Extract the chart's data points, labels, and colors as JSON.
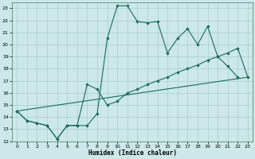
{
  "xlabel": "Humidex (Indice chaleur)",
  "xlim": [
    -0.5,
    23.5
  ],
  "ylim": [
    12,
    23.5
  ],
  "yticks": [
    12,
    13,
    14,
    15,
    16,
    17,
    18,
    19,
    20,
    21,
    22,
    23
  ],
  "xticks": [
    0,
    1,
    2,
    3,
    4,
    5,
    6,
    7,
    8,
    9,
    10,
    11,
    12,
    13,
    14,
    15,
    16,
    17,
    18,
    19,
    20,
    21,
    22,
    23
  ],
  "bg_color": "#cce8e8",
  "grid_color": "#aacccc",
  "line_color": "#1a6b5a",
  "line1_x": [
    0,
    1,
    2,
    3,
    4,
    5,
    6,
    7,
    8,
    9,
    10,
    11,
    12,
    13,
    14,
    15,
    16,
    17,
    18,
    19,
    20,
    21,
    22
  ],
  "line1_y": [
    14.5,
    13.7,
    13.5,
    13.3,
    12.2,
    13.3,
    13.3,
    13.3,
    14.3,
    20.5,
    23.2,
    23.2,
    21.9,
    21.8,
    21.9,
    19.3,
    20.5,
    21.3,
    20.0,
    21.5,
    19.0,
    18.2,
    17.3
  ],
  "line2_x": [
    0,
    1,
    2,
    3,
    4,
    5,
    6,
    7,
    8,
    9,
    10,
    11,
    12,
    13,
    14,
    15,
    16,
    17,
    18,
    19,
    20,
    21,
    22,
    23
  ],
  "line2_y": [
    14.5,
    13.7,
    13.5,
    13.3,
    12.2,
    13.3,
    13.3,
    16.7,
    16.3,
    15.0,
    15.3,
    16.0,
    16.3,
    16.7,
    17.0,
    17.3,
    17.7,
    18.0,
    18.3,
    18.7,
    19.0,
    19.3,
    19.7,
    17.3
  ],
  "line3_x": [
    0,
    23
  ],
  "line3_y": [
    14.5,
    17.3
  ]
}
